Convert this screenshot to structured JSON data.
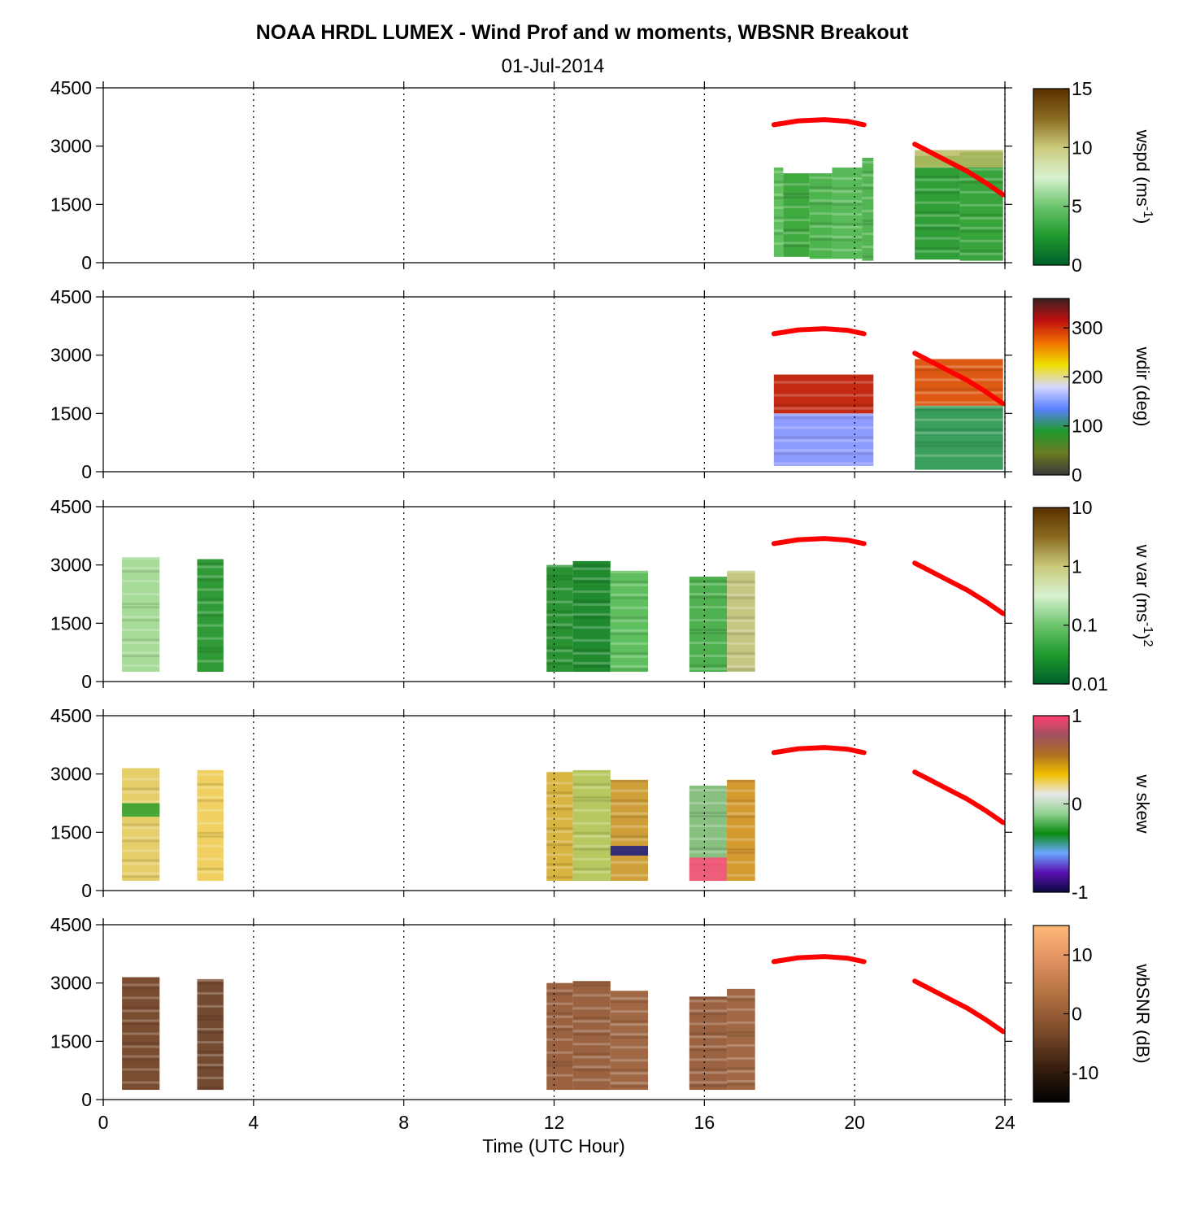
{
  "title": "NOAA HRDL LUMEX - Wind Prof and w moments, WBSNR Breakout",
  "subtitle": "01-Jul-2014",
  "colors": {
    "red_line": "#ff0000",
    "grid": "#000000",
    "background": "#ffffff"
  },
  "chart_data": [
    {
      "type": "heatmap",
      "name": "wspd",
      "xlabel": "",
      "ylabel": "",
      "xlim": [
        0,
        24
      ],
      "ylim": [
        0,
        4500
      ],
      "yticks": [
        "0",
        "1500",
        "3000",
        "4500"
      ],
      "colorbar": {
        "label": "wspd (ms",
        "label_sup": "-1",
        "label_end": ")",
        "ticks": [
          "0",
          "5",
          "10",
          "15"
        ],
        "tick_values": [
          0,
          5,
          10,
          15
        ],
        "range": [
          0,
          15
        ],
        "colormap": [
          "#00602a",
          "#1f9a2e",
          "#6cc46c",
          "#d8f2d0",
          "#c9c97a",
          "#8a6a20",
          "#5a3000"
        ]
      },
      "data_blocks": [
        {
          "x": [
            17.85,
            18.1
          ],
          "y": [
            150,
            2450
          ],
          "fill": "#5fbf5f"
        },
        {
          "x": [
            18.1,
            18.8
          ],
          "y": [
            150,
            2300
          ],
          "fill": "#3fa83f"
        },
        {
          "x": [
            18.8,
            19.4
          ],
          "y": [
            100,
            2300
          ],
          "fill": "#4db34d"
        },
        {
          "x": [
            19.4,
            20.2
          ],
          "y": [
            100,
            2450
          ],
          "fill": "#59ba59"
        },
        {
          "x": [
            20.2,
            20.5
          ],
          "y": [
            50,
            2700
          ],
          "fill": "#52b552"
        },
        {
          "x": [
            21.6,
            22.8
          ],
          "y": [
            80,
            2750
          ],
          "fill": "#2f9e37"
        },
        {
          "x": [
            22.8,
            23.95
          ],
          "y": [
            50,
            2850
          ],
          "fill": "#38a43c"
        }
      ],
      "top_bands": [
        {
          "x": [
            21.6,
            23.95
          ],
          "y": [
            2450,
            2900
          ],
          "fill": "#b9bb64"
        }
      ],
      "red_segments": [
        {
          "x": [
            17.85,
            18.5,
            19.2,
            19.8,
            20.25
          ],
          "y": [
            3550,
            3650,
            3680,
            3640,
            3550
          ]
        },
        {
          "x": [
            21.6,
            22.3,
            23.0,
            23.5,
            23.95
          ],
          "y": [
            3050,
            2700,
            2350,
            2050,
            1750
          ]
        }
      ]
    },
    {
      "type": "heatmap",
      "name": "wdir",
      "xlabel": "",
      "ylabel": "",
      "xlim": [
        0,
        24
      ],
      "ylim": [
        0,
        4500
      ],
      "yticks": [
        "0",
        "1500",
        "3000",
        "4500"
      ],
      "colorbar": {
        "label": "wdir (deg)",
        "label_sup": "",
        "label_end": "",
        "ticks": [
          "0",
          "100",
          "200",
          "300"
        ],
        "tick_values": [
          0,
          100,
          200,
          300
        ],
        "range": [
          0,
          360
        ],
        "colormap": [
          "#3a3a3a",
          "#6a7a20",
          "#1f9a2e",
          "#5a80ff",
          "#d8d8ff",
          "#f0e000",
          "#f07000",
          "#c01010",
          "#3a2020"
        ]
      },
      "data_blocks": [
        {
          "x": [
            17.85,
            20.5
          ],
          "y": [
            150,
            1500
          ],
          "fill": "#8f9cff"
        },
        {
          "x": [
            17.85,
            20.5
          ],
          "y": [
            1500,
            2500
          ],
          "fill": "#c42a12"
        },
        {
          "x": [
            21.6,
            23.95
          ],
          "y": [
            50,
            1700
          ],
          "fill": "#3a9e5c"
        },
        {
          "x": [
            21.6,
            23.95
          ],
          "y": [
            1700,
            2900
          ],
          "fill": "#de5a14"
        }
      ],
      "top_bands": [],
      "red_segments": [
        {
          "x": [
            17.85,
            18.5,
            19.2,
            19.8,
            20.25
          ],
          "y": [
            3550,
            3650,
            3680,
            3640,
            3550
          ]
        },
        {
          "x": [
            21.6,
            22.3,
            23.0,
            23.5,
            23.95
          ],
          "y": [
            3050,
            2700,
            2350,
            2050,
            1750
          ]
        }
      ]
    },
    {
      "type": "heatmap",
      "name": "w var",
      "xlabel": "",
      "ylabel": "",
      "xlim": [
        0,
        24
      ],
      "ylim": [
        0,
        4500
      ],
      "yticks": [
        "0",
        "1500",
        "3000",
        "4500"
      ],
      "colorbar": {
        "label": "w var (ms",
        "label_sup": "-1",
        "label_end": ")",
        "label_sup2": "2",
        "ticks": [
          "0.01",
          "0.1",
          "1",
          "10"
        ],
        "tick_values": [
          0,
          1,
          2,
          3
        ],
        "range": [
          0,
          3
        ],
        "colormap": [
          "#00602a",
          "#1f9a2e",
          "#6cc46c",
          "#d8f2d0",
          "#c9c97a",
          "#8a6a20",
          "#5a3000"
        ]
      },
      "data_blocks": [
        {
          "x": [
            0.5,
            1.5
          ],
          "y": [
            250,
            3200
          ],
          "fill": "#a7dc98"
        },
        {
          "x": [
            2.5,
            3.2
          ],
          "y": [
            250,
            3150
          ],
          "fill": "#2f9a36"
        },
        {
          "x": [
            11.8,
            12.5
          ],
          "y": [
            250,
            3000
          ],
          "fill": "#2a9232"
        },
        {
          "x": [
            12.5,
            13.5
          ],
          "y": [
            250,
            3100
          ],
          "fill": "#1f8a2e"
        },
        {
          "x": [
            13.5,
            14.5
          ],
          "y": [
            250,
            2850
          ],
          "fill": "#5fbf5f"
        },
        {
          "x": [
            15.6,
            16.6
          ],
          "y": [
            250,
            2700
          ],
          "fill": "#4fb04f"
        },
        {
          "x": [
            16.6,
            17.35
          ],
          "y": [
            250,
            2850
          ],
          "fill": "#c3c782"
        }
      ],
      "top_bands": [],
      "red_segments": [
        {
          "x": [
            17.85,
            18.5,
            19.2,
            19.8,
            20.25
          ],
          "y": [
            3550,
            3650,
            3680,
            3640,
            3550
          ]
        },
        {
          "x": [
            21.6,
            22.3,
            23.0,
            23.5,
            23.95
          ],
          "y": [
            3050,
            2700,
            2350,
            2050,
            1750
          ]
        }
      ]
    },
    {
      "type": "heatmap",
      "name": "w skew",
      "xlabel": "",
      "ylabel": "",
      "xlim": [
        0,
        24
      ],
      "ylim": [
        0,
        4500
      ],
      "yticks": [
        "0",
        "1500",
        "3000",
        "4500"
      ],
      "colorbar": {
        "label": "w skew",
        "label_sup": "",
        "label_end": "",
        "ticks": [
          "-1",
          "0",
          "1"
        ],
        "tick_values": [
          -1,
          0,
          1
        ],
        "range": [
          -1,
          1
        ],
        "colormap": [
          "#0a0a40",
          "#5a10b0",
          "#6aa8ff",
          "#0a8a10",
          "#90d090",
          "#e8e8e8",
          "#f0c000",
          "#b07020",
          "#a05060",
          "#ff4070"
        ]
      },
      "data_blocks": [
        {
          "x": [
            0.5,
            1.5
          ],
          "y": [
            250,
            3150
          ],
          "fill": "#e6cf6a"
        },
        {
          "x": [
            2.5,
            3.2
          ],
          "y": [
            250,
            3100
          ],
          "fill": "#efd060"
        },
        {
          "x": [
            11.8,
            12.5
          ],
          "y": [
            250,
            3050
          ],
          "fill": "#d8b440"
        },
        {
          "x": [
            12.5,
            13.5
          ],
          "y": [
            250,
            3100
          ],
          "fill": "#b8c860"
        },
        {
          "x": [
            13.5,
            14.5
          ],
          "y": [
            250,
            2850
          ],
          "fill": "#cfa03a"
        },
        {
          "x": [
            15.6,
            16.6
          ],
          "y": [
            250,
            2700
          ],
          "fill": "#88c080"
        },
        {
          "x": [
            16.6,
            17.35
          ],
          "y": [
            250,
            2850
          ],
          "fill": "#d49a30"
        }
      ],
      "top_bands": [
        {
          "x": [
            15.6,
            16.6
          ],
          "y": [
            250,
            850
          ],
          "fill": "#ff4a78"
        },
        {
          "x": [
            0.5,
            1.5
          ],
          "y": [
            1900,
            2250
          ],
          "fill": "#2a9e2a"
        },
        {
          "x": [
            13.5,
            14.5
          ],
          "y": [
            900,
            1150
          ],
          "fill": "#1a1a80"
        }
      ],
      "red_segments": [
        {
          "x": [
            17.85,
            18.5,
            19.2,
            19.8,
            20.25
          ],
          "y": [
            3550,
            3650,
            3680,
            3640,
            3550
          ]
        },
        {
          "x": [
            21.6,
            22.3,
            23.0,
            23.5,
            23.95
          ],
          "y": [
            3050,
            2700,
            2350,
            2050,
            1750
          ]
        }
      ]
    },
    {
      "type": "heatmap",
      "name": "wbSNR",
      "xlabel": "Time (UTC Hour)",
      "ylabel": "",
      "xlim": [
        0,
        24
      ],
      "ylim": [
        0,
        4500
      ],
      "xticks": [
        "0",
        "4",
        "8",
        "12",
        "16",
        "20",
        "24"
      ],
      "yticks": [
        "0",
        "1500",
        "3000",
        "4500"
      ],
      "colorbar": {
        "label": "wbSNR (dB)",
        "label_sup": "",
        "label_end": "",
        "ticks": [
          "-10",
          "0",
          "10"
        ],
        "tick_values": [
          -10,
          0,
          10
        ],
        "range": [
          -15,
          15
        ],
        "colormap": [
          "#000000",
          "#3a2010",
          "#7a4a2a",
          "#b07040",
          "#e09060",
          "#ffb878"
        ]
      },
      "data_blocks": [
        {
          "x": [
            0.5,
            1.5
          ],
          "y": [
            250,
            3150
          ],
          "fill": "#7a4c30"
        },
        {
          "x": [
            2.5,
            3.2
          ],
          "y": [
            250,
            3100
          ],
          "fill": "#744a30"
        },
        {
          "x": [
            11.8,
            12.5
          ],
          "y": [
            250,
            3000
          ],
          "fill": "#9a6240"
        },
        {
          "x": [
            12.5,
            13.5
          ],
          "y": [
            250,
            3050
          ],
          "fill": "#9a6240"
        },
        {
          "x": [
            13.5,
            14.5
          ],
          "y": [
            250,
            2800
          ],
          "fill": "#a06844"
        },
        {
          "x": [
            15.6,
            16.6
          ],
          "y": [
            250,
            2650
          ],
          "fill": "#9a6240"
        },
        {
          "x": [
            16.6,
            17.35
          ],
          "y": [
            250,
            2850
          ],
          "fill": "#a06844"
        }
      ],
      "top_bands": [],
      "red_segments": [
        {
          "x": [
            17.85,
            18.5,
            19.2,
            19.8,
            20.25
          ],
          "y": [
            3550,
            3650,
            3680,
            3640,
            3550
          ]
        },
        {
          "x": [
            21.6,
            22.3,
            23.0,
            23.5,
            23.95
          ],
          "y": [
            3050,
            2700,
            2350,
            2050,
            1750
          ]
        }
      ]
    }
  ]
}
